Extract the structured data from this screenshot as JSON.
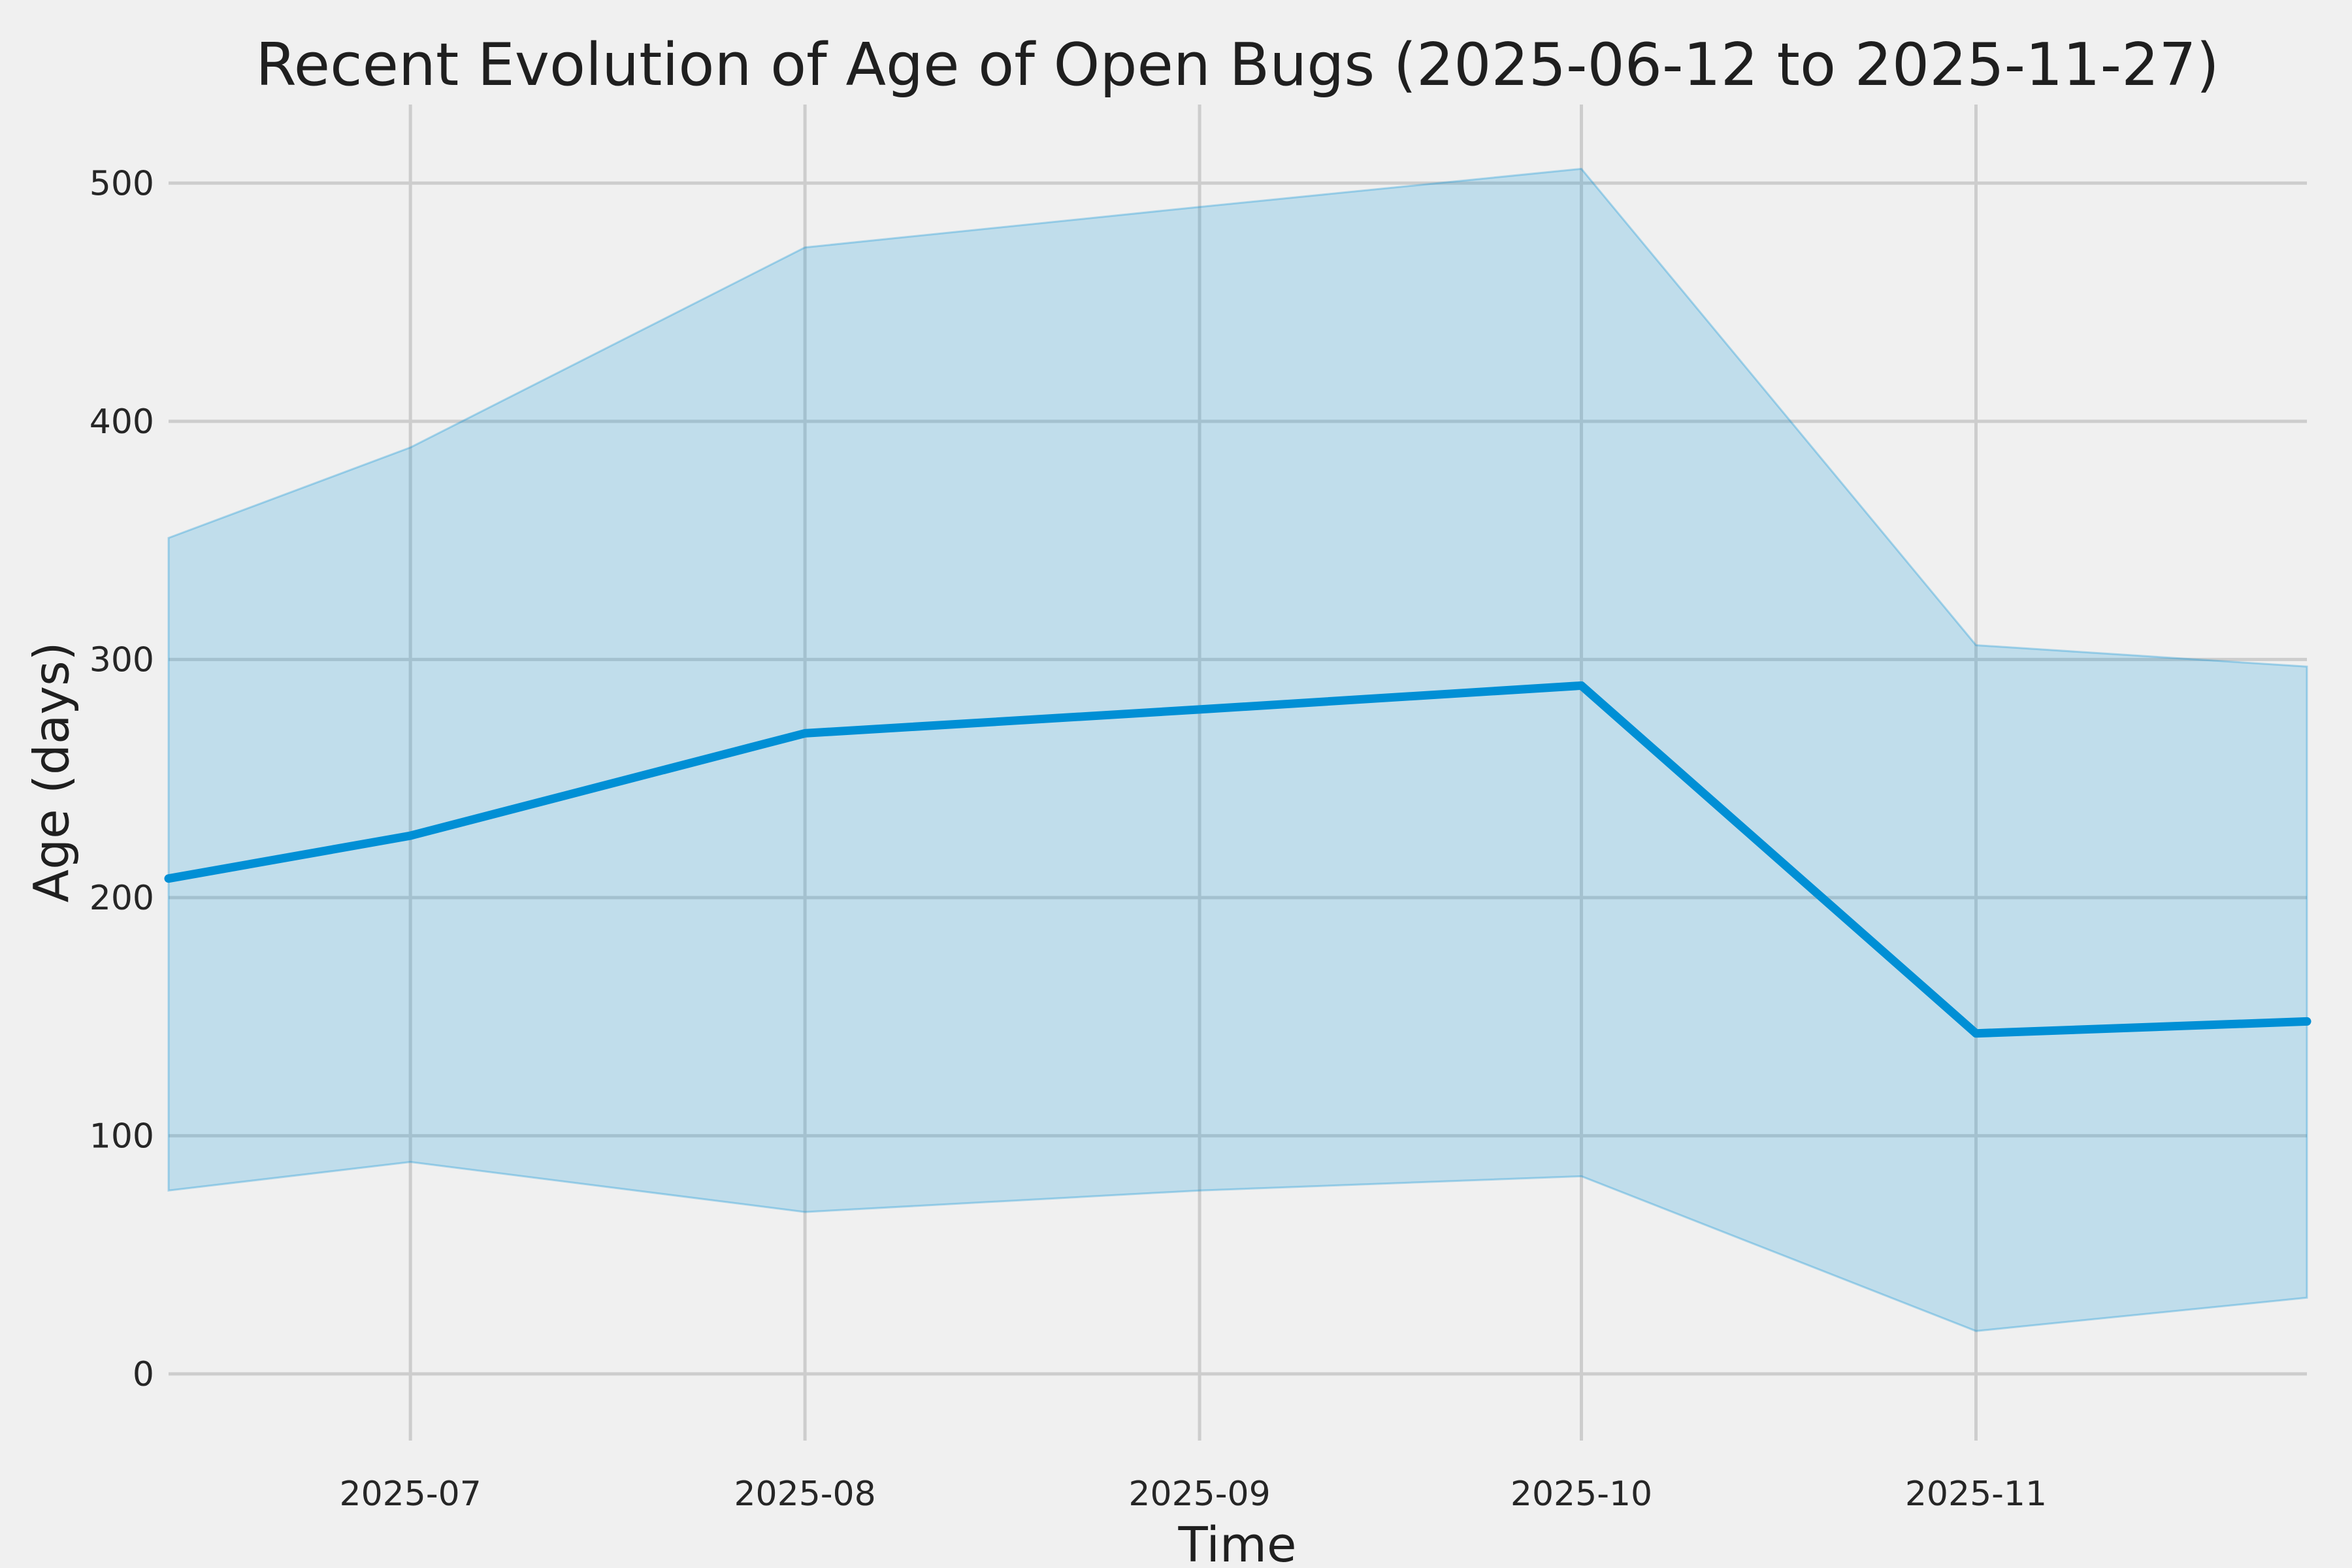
{
  "title": "Recent Evolution of Age of Open Bugs (2025-06-12 to 2025-11-27)",
  "chart_data": {
    "type": "area",
    "title": "Recent Evolution of Age of Open Bugs (2025-06-12 to 2025-11-27)",
    "xlabel": "Time",
    "ylabel": "Age (days)",
    "x": [
      "2025-06-12",
      "2025-07-01",
      "2025-08-01",
      "2025-09-01",
      "2025-10-01",
      "2025-11-01",
      "2025-11-27"
    ],
    "series": [
      {
        "name": "mean-age",
        "role": "line",
        "values": [
          208,
          226,
          269,
          279,
          289,
          143,
          148
        ]
      },
      {
        "name": "band-upper",
        "role": "band_top",
        "values": [
          351,
          389,
          473,
          490,
          506,
          306,
          297
        ]
      },
      {
        "name": "band-lower",
        "role": "band_bottom",
        "values": [
          77,
          89,
          68,
          77,
          83,
          18,
          32
        ]
      }
    ],
    "x_ticks": [
      {
        "date": "2025-07-01",
        "label": "2025-07"
      },
      {
        "date": "2025-08-01",
        "label": "2025-08"
      },
      {
        "date": "2025-09-01",
        "label": "2025-09"
      },
      {
        "date": "2025-10-01",
        "label": "2025-10"
      },
      {
        "date": "2025-11-01",
        "label": "2025-11"
      }
    ],
    "y_ticks": [
      0,
      100,
      200,
      300,
      400,
      500
    ],
    "xlim": [
      "2025-06-12",
      "2025-11-27"
    ],
    "ylim": [
      -28,
      533
    ],
    "grid": true,
    "legend_position": "none",
    "colors": {
      "line": "#008fd5",
      "band_fill": "rgba(0,143,213,0.20)",
      "band_edge": "rgba(0,143,213,0.30)",
      "gridline": "#cdcdcd",
      "background": "#f0f0f0",
      "text": "#262626"
    }
  }
}
